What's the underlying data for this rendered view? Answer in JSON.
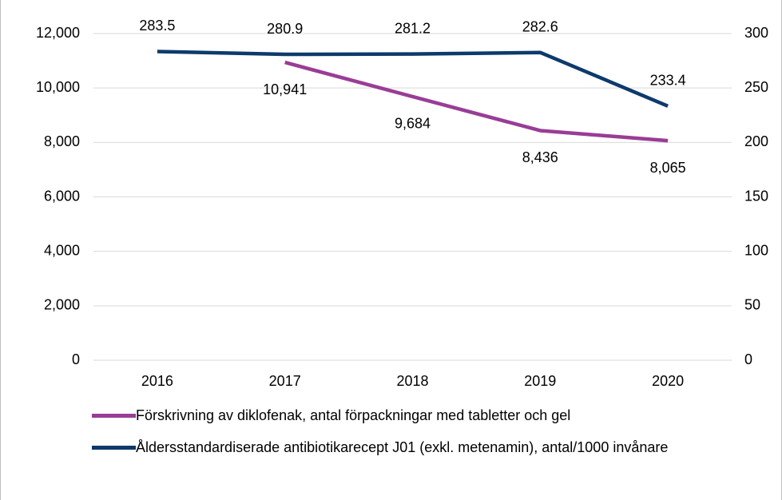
{
  "chart_data": {
    "type": "line",
    "categories": [
      "2016",
      "2017",
      "2018",
      "2019",
      "2020"
    ],
    "series": [
      {
        "name": "Förskrivning av diklofenak, antal förpackningar med tabletter och gel",
        "color": "#993d96",
        "values": [
          null,
          10941,
          9684,
          8436,
          8065
        ],
        "value_labels": [
          null,
          "10,941",
          "9,684",
          "8,436",
          "8,065"
        ]
      },
      {
        "name": "Åldersstandardiserade antibiotikarecept J01 (exkl. metenamin), antal/1000 invånare",
        "color": "#0d3a6b",
        "axis": "y2",
        "values": [
          283.5,
          280.9,
          281.2,
          282.6,
          233.4
        ]
      }
    ],
    "ylim": [
      0,
      12000
    ],
    "yticks": [
      0,
      {
        "value": 2000,
        "label": "2,000"
      },
      {
        "value": 4000,
        "label": "4,000"
      },
      {
        "value": 6000,
        "label": "6,000"
      },
      {
        "value": 8000,
        "label": "8,000"
      },
      {
        "value": 10000,
        "label": "10,000"
      },
      {
        "value": 12000,
        "label": "12,000"
      }
    ],
    "y2lim": [
      0,
      300
    ],
    "y2ticks": [
      0,
      50,
      100,
      150,
      200,
      250,
      300
    ],
    "grid": true
  }
}
